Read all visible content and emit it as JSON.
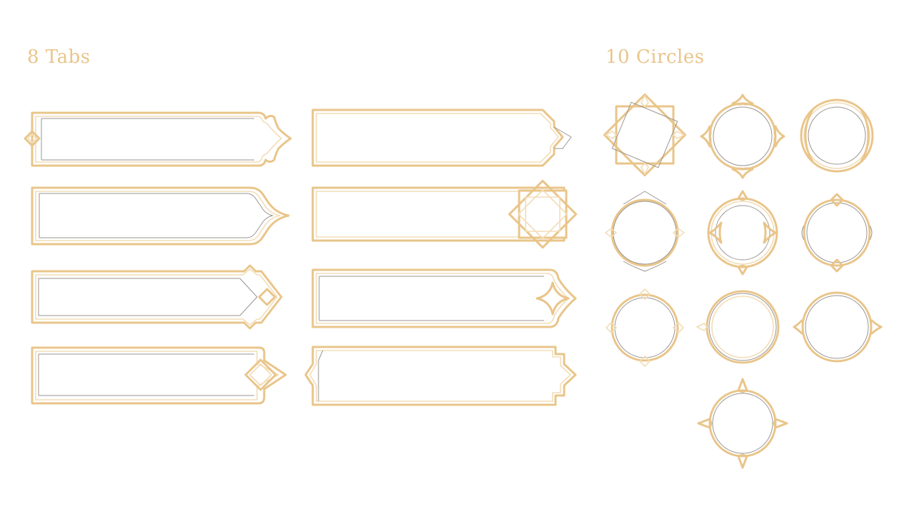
{
  "headings": {
    "tabs": "8 Tabs",
    "circles": "10 Circles"
  },
  "colors": {
    "gold": "#E9C58A",
    "gold_light": "#F2DDB8",
    "gold_shadow": "#B8A88E",
    "grey_inner": "#9A9590",
    "background": "#FFFFFF"
  },
  "frames": {
    "tabs": [
      {
        "name": "tab-frame-1",
        "style": "ogee-arch-end"
      },
      {
        "name": "tab-frame-2",
        "style": "corner-cut-chevron"
      },
      {
        "name": "tab-frame-3",
        "style": "pointed-arrow-end"
      },
      {
        "name": "tab-frame-4",
        "style": "octagram-star-end"
      },
      {
        "name": "tab-frame-5",
        "style": "stepped-arrow-diamond"
      },
      {
        "name": "tab-frame-6",
        "style": "concave-star-end"
      },
      {
        "name": "tab-frame-7",
        "style": "diamond-end"
      },
      {
        "name": "tab-frame-8",
        "style": "stepped-both-ends"
      }
    ],
    "circles": [
      {
        "name": "circle-frame-1",
        "style": "four-point-square"
      },
      {
        "name": "circle-frame-2",
        "style": "four-point-spike"
      },
      {
        "name": "circle-frame-3",
        "style": "double-ring-arcs"
      },
      {
        "name": "circle-frame-4",
        "style": "ogee-points"
      },
      {
        "name": "circle-frame-5",
        "style": "double-ring-side-spikes"
      },
      {
        "name": "circle-frame-6",
        "style": "diamond-top-bottom"
      },
      {
        "name": "circle-frame-7",
        "style": "diamond-accents"
      },
      {
        "name": "circle-frame-8",
        "style": "thick-double-ring"
      },
      {
        "name": "circle-frame-9",
        "style": "cusped-side-spikes"
      },
      {
        "name": "circle-frame-10",
        "style": "four-star-points"
      }
    ]
  }
}
